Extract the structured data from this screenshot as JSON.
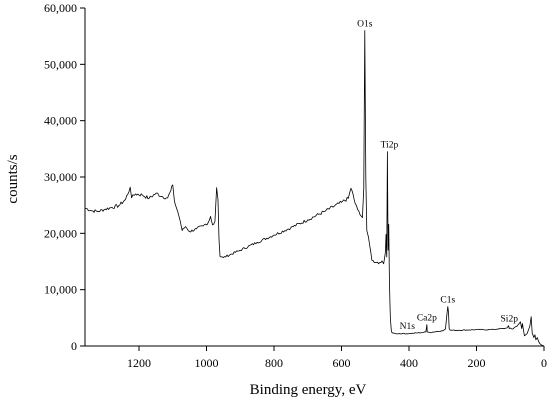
{
  "chart_data": {
    "type": "line",
    "title": "",
    "xlabel": "Binding energy, eV",
    "ylabel": "counts/s",
    "xlim": [
      1360,
      0
    ],
    "ylim": [
      0,
      60000
    ],
    "x_reversed": true,
    "grid": false,
    "x_ticks": [
      {
        "value": 1200,
        "label": "1200"
      },
      {
        "value": 1000,
        "label": "1000"
      },
      {
        "value": 800,
        "label": "800"
      },
      {
        "value": 600,
        "label": "600"
      },
      {
        "value": 400,
        "label": "400"
      },
      {
        "value": 200,
        "label": "200"
      },
      {
        "value": 0,
        "label": "0"
      }
    ],
    "y_ticks": [
      {
        "value": 0,
        "label": "0"
      },
      {
        "value": 10000,
        "label": "10,000"
      },
      {
        "value": 20000,
        "label": "20,000"
      },
      {
        "value": 30000,
        "label": "30,000"
      },
      {
        "value": 40000,
        "label": "40,000"
      },
      {
        "value": 50000,
        "label": "50,000"
      },
      {
        "value": 60000,
        "label": "60,000"
      }
    ],
    "series": [
      {
        "x": [
          1360,
          1340,
          1320,
          1300,
          1280,
          1260,
          1240,
          1226,
          1222,
          1210,
          1190,
          1170,
          1150,
          1130,
          1115,
          1106,
          1100,
          1095,
          1085,
          1078,
          1072,
          1062,
          1050,
          1030,
          1010,
          995,
          988,
          982,
          975,
          970,
          966,
          963,
          960,
          950,
          900,
          850,
          800,
          750,
          700,
          650,
          600,
          580,
          572,
          566,
          560,
          552,
          545,
          538,
          534,
          531,
          528,
          525,
          520,
          510,
          490,
          480,
          475,
          470,
          468,
          466,
          464,
          462,
          460,
          458,
          456,
          455,
          452,
          448,
          440,
          420,
          400,
          360,
          350,
          347,
          346,
          340,
          300,
          292,
          287,
          285,
          283,
          281,
          278,
          270,
          250,
          200,
          160,
          140,
          120,
          110,
          105,
          103,
          100,
          95,
          80,
          70,
          66,
          64,
          58,
          50,
          42,
          38,
          35,
          30,
          27,
          24,
          20,
          16,
          12,
          8,
          4,
          0
        ],
        "y": [
          24500,
          24000,
          23900,
          24300,
          24600,
          24900,
          26000,
          28200,
          26300,
          27000,
          26800,
          26200,
          27100,
          26500,
          26300,
          27500,
          28600,
          25700,
          23800,
          22200,
          20500,
          21200,
          20300,
          20800,
          21300,
          21900,
          23000,
          21500,
          22100,
          28100,
          26000,
          19000,
          15900,
          15700,
          17000,
          18400,
          19700,
          21000,
          22400,
          23900,
          25500,
          26200,
          28000,
          27000,
          25400,
          24200,
          23300,
          22800,
          28000,
          56000,
          30000,
          20500,
          19300,
          15200,
          14600,
          15100,
          14600,
          16600,
          19800,
          15800,
          34500,
          17000,
          21600,
          11500,
          6500,
          4700,
          2500,
          2300,
          2200,
          2200,
          2200,
          2400,
          2500,
          3800,
          2500,
          2400,
          2700,
          3000,
          6000,
          7000,
          6000,
          3100,
          2800,
          2800,
          2800,
          2900,
          2900,
          3000,
          3100,
          3200,
          3600,
          3100,
          3200,
          3000,
          3500,
          4300,
          3100,
          4000,
          1800,
          2200,
          3500,
          5200,
          2300,
          1500,
          2000,
          1100,
          1500,
          800,
          400,
          200,
          100,
          0
        ]
      }
    ],
    "annotations": [
      {
        "text": "O1s",
        "x": 531,
        "y": 56000
      },
      {
        "text": "Ti2p",
        "x": 458,
        "y": 34500
      },
      {
        "text": "C1s",
        "x": 285,
        "y": 7000
      },
      {
        "text": "N1s",
        "x": 405,
        "y": 2300
      },
      {
        "text": "Ca2p",
        "x": 347,
        "y": 3800
      },
      {
        "text": "Si2p",
        "x": 103,
        "y": 3600
      }
    ]
  }
}
